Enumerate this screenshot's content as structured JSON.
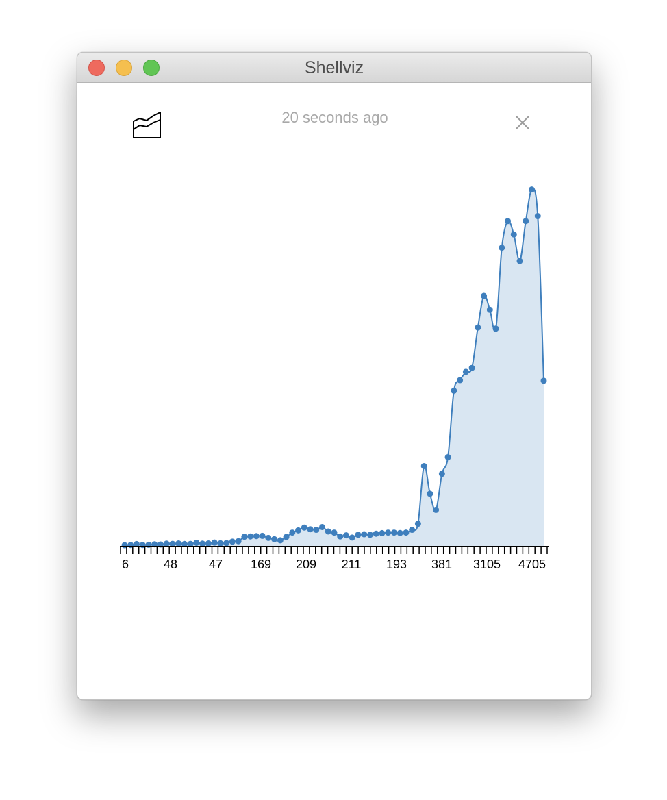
{
  "window": {
    "title": "Shellviz"
  },
  "header": {
    "timestamp": "20 seconds ago",
    "viz_icon": "area-chart-icon",
    "close_icon": "close-icon"
  },
  "colors": {
    "line": "#3f7fbd",
    "area": "#d9e6f2",
    "axis": "#000000"
  },
  "chart_data": {
    "type": "area",
    "title": "",
    "xlabel": "",
    "ylabel": "",
    "grid": false,
    "legend": "none",
    "x_tick_labels": [
      "6",
      "48",
      "47",
      "169",
      "209",
      "211",
      "193",
      "381",
      "3105",
      "4705"
    ],
    "values": [
      6,
      8,
      16,
      8,
      10,
      14,
      12,
      20,
      18,
      22,
      17,
      18,
      28,
      20,
      22,
      30,
      23,
      25,
      38,
      42,
      82,
      85,
      88,
      90,
      72,
      60,
      50,
      80,
      120,
      140,
      165,
      150,
      145,
      170,
      130,
      120,
      85,
      95,
      75,
      100,
      105,
      100,
      110,
      115,
      120,
      120,
      116,
      120,
      145,
      200,
      720,
      470,
      325,
      650,
      800,
      1400,
      1495,
      1570,
      1605,
      1970,
      2255,
      2130,
      1960,
      2690,
      2930,
      2810,
      2570,
      2930,
      3215,
      2975,
      1490
    ],
    "ylim": [
      0,
      3250
    ]
  }
}
